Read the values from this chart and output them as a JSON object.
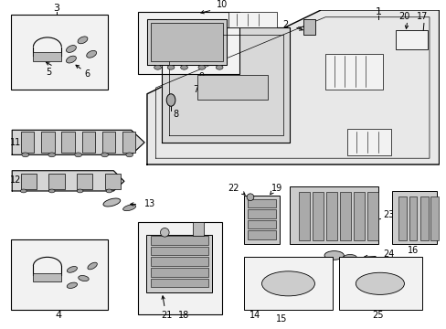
{
  "bg_color": "#ffffff",
  "line_color": "#000000",
  "text_color": "#000000",
  "gray_fill": "#e8e8e8",
  "light_gray": "#f2f2f2",
  "mid_gray": "#d0d0d0"
}
